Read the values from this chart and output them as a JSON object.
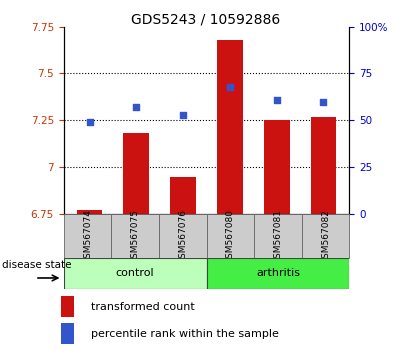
{
  "title": "GDS5243 / 10592886",
  "samples": [
    "GSM567074",
    "GSM567075",
    "GSM567076",
    "GSM567080",
    "GSM567081",
    "GSM567082"
  ],
  "bar_values": [
    6.77,
    7.18,
    6.95,
    7.68,
    7.25,
    7.27
  ],
  "dot_values": [
    49,
    57,
    53,
    68,
    61,
    60
  ],
  "ylim_left": [
    6.75,
    7.75
  ],
  "ylim_right": [
    0,
    100
  ],
  "yticks_left": [
    6.75,
    7.0,
    7.25,
    7.5,
    7.75
  ],
  "ytick_labels_left": [
    "6.75",
    "7",
    "7.25",
    "7.5",
    "7.75"
  ],
  "yticks_right": [
    0,
    25,
    50,
    75,
    100
  ],
  "ytick_labels_right": [
    "0",
    "25",
    "50",
    "75",
    "100%"
  ],
  "hlines": [
    7.0,
    7.25,
    7.5
  ],
  "bar_color": "#cc1111",
  "dot_color": "#3355cc",
  "bar_bottom": 6.75,
  "control_color": "#bbffbb",
  "arthritis_color": "#44ee44",
  "xtick_bg_color": "#cccccc",
  "group_label": "disease state",
  "legend_bar_label": "transformed count",
  "legend_dot_label": "percentile rank within the sample",
  "title_fontsize": 10,
  "axis_fontsize": 8,
  "tick_label_fontsize": 7.5,
  "legend_fontsize": 8
}
